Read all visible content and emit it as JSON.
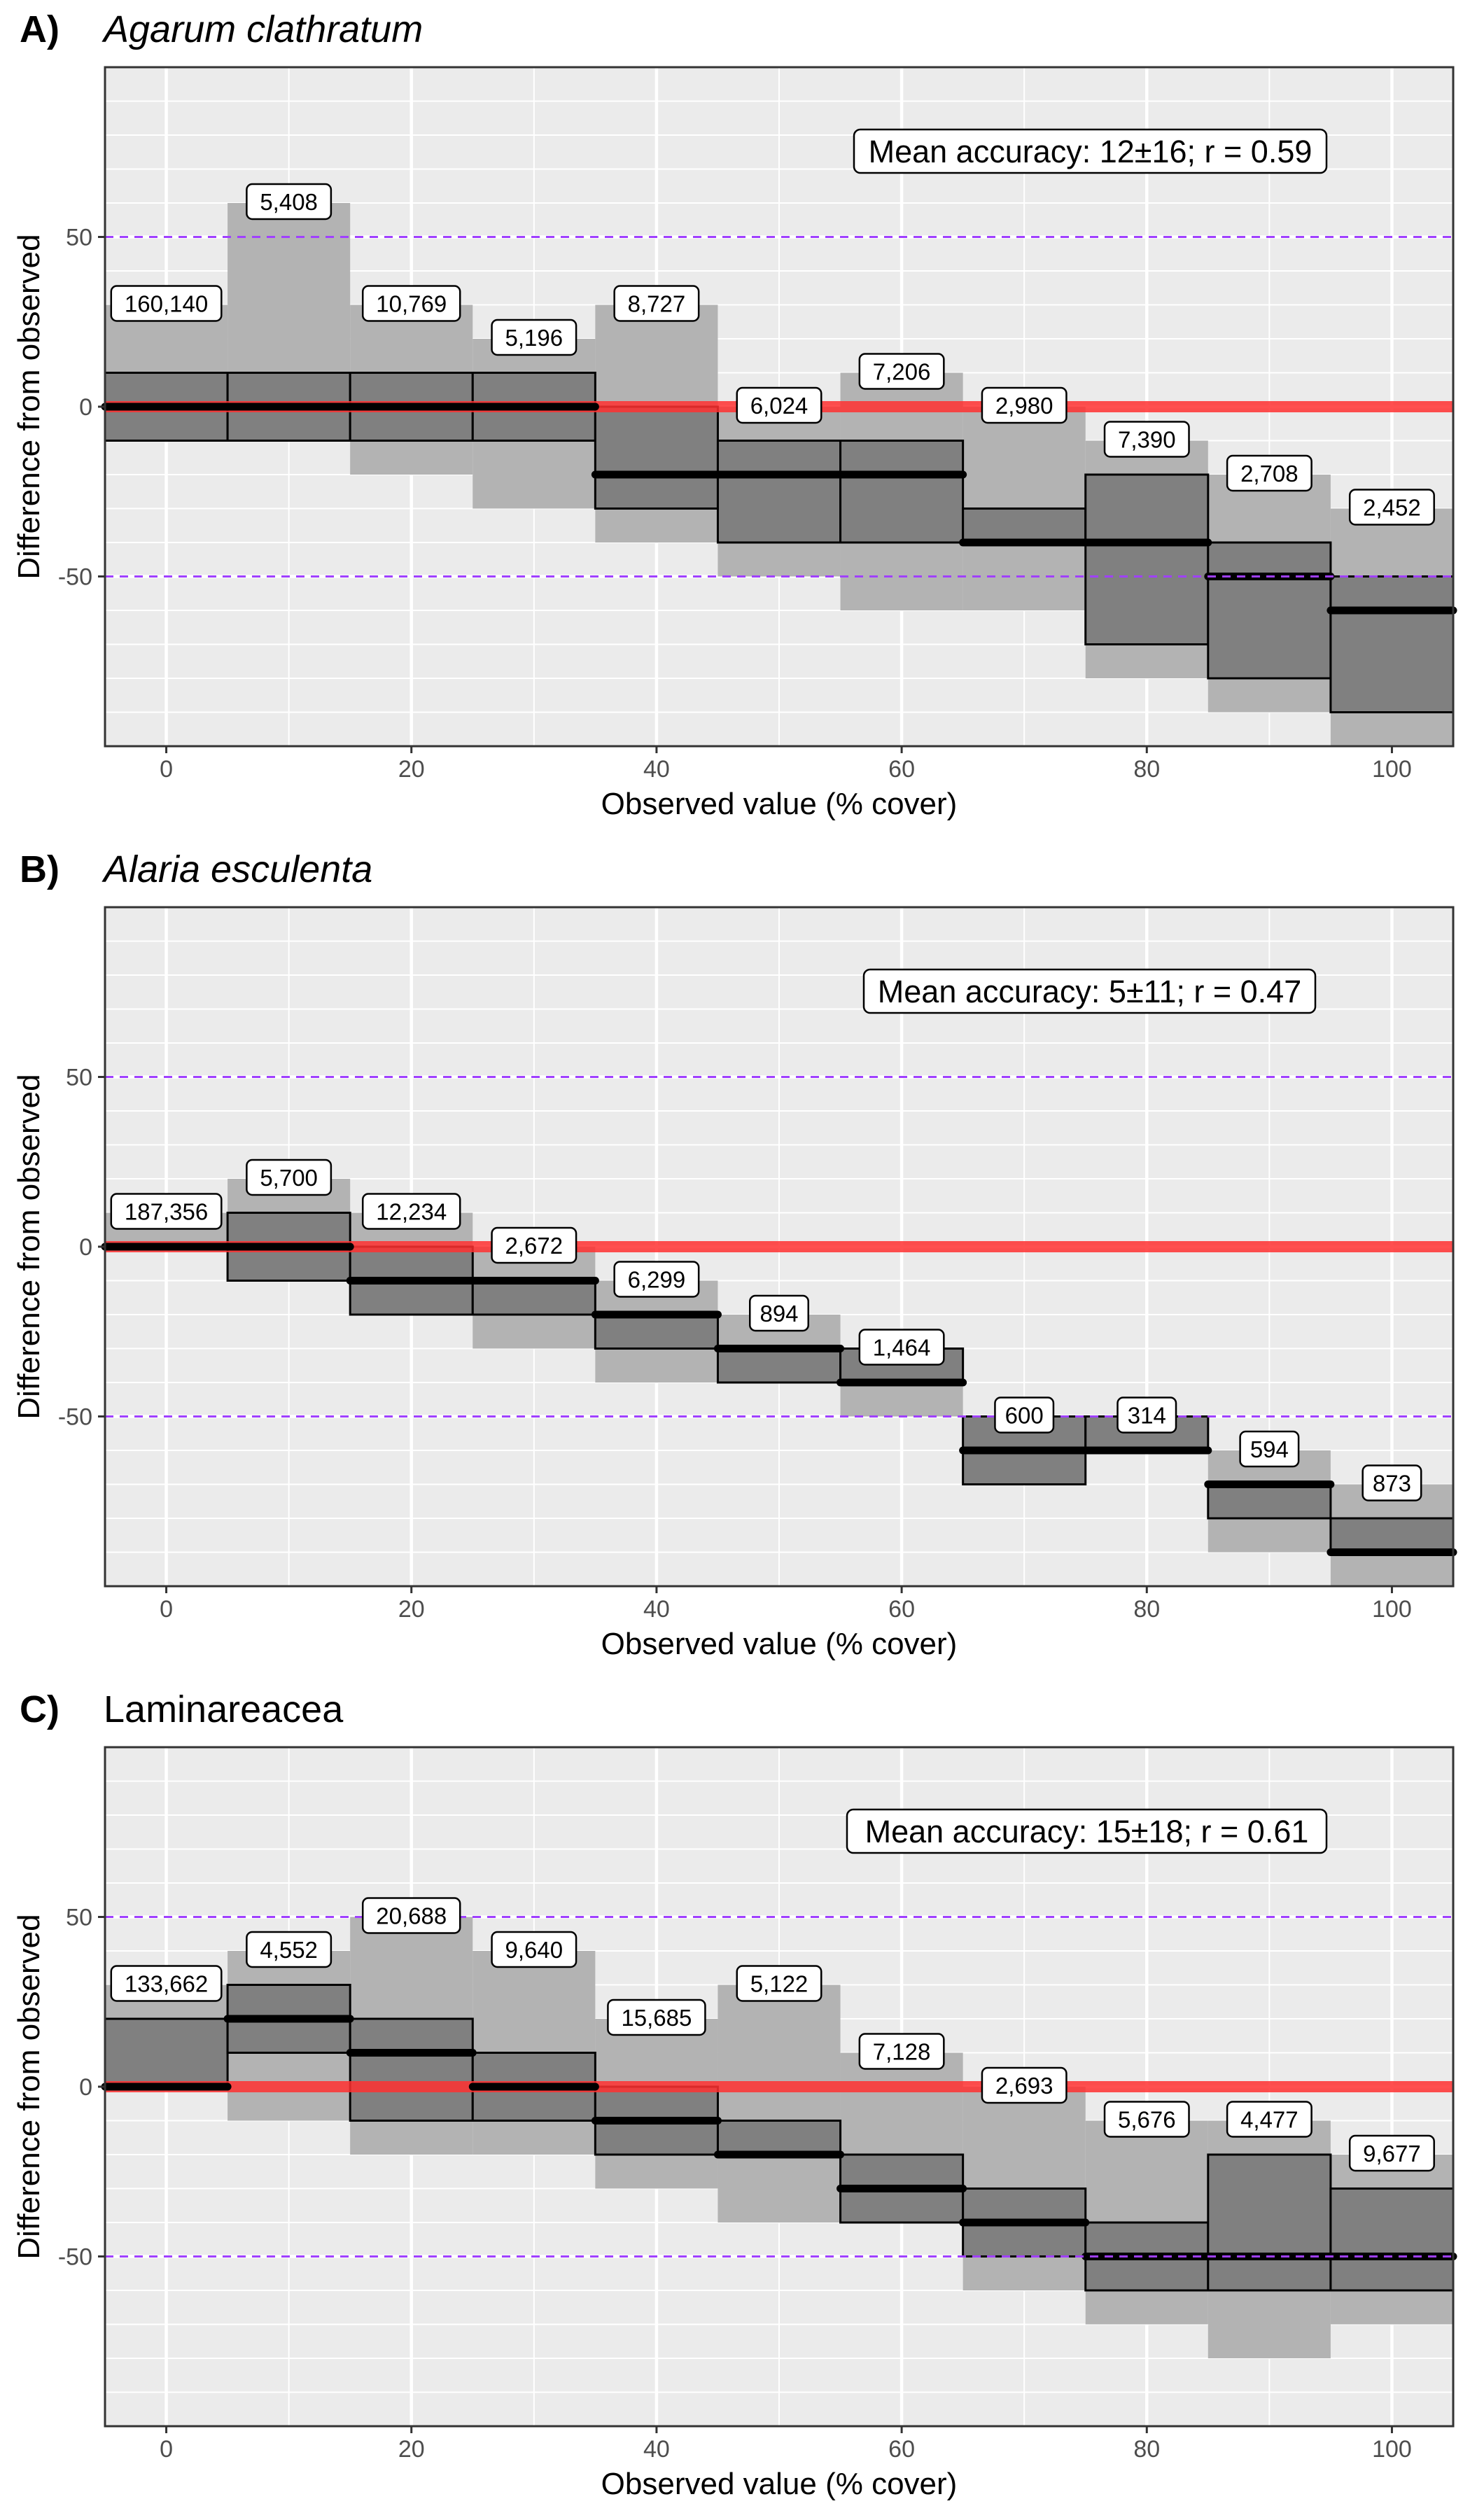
{
  "colors": {
    "panel_bg": "#ebebeb",
    "grid": "#ffffff",
    "outer_band": "#b3b3b3",
    "inner_box": "#808080",
    "median": "#000000",
    "zero_line": "#ff3030",
    "ref_lines": "#a040ff"
  },
  "chart_data": [
    {
      "type": "boxplot",
      "panel_label": "A)",
      "title": "Agarum clathratum",
      "title_italic": true,
      "annotation": "Mean accuracy: 12±16; r = 0.59",
      "xlabel": "Observed value (% cover)",
      "ylabel": "Difference from observed",
      "xlim": [
        -5,
        105
      ],
      "ylim": [
        -100,
        100
      ],
      "x_ticks": [
        0,
        20,
        40,
        60,
        80,
        100
      ],
      "x_tick_labels": [
        "0",
        "20",
        "40",
        "60",
        "80",
        "100"
      ],
      "y_ticks": [
        -50,
        0,
        50
      ],
      "y_tick_labels": [
        "-50",
        "0",
        "50"
      ],
      "reference_lines": [
        50,
        -50
      ],
      "zero_line": 0,
      "grid": true,
      "bins": [
        {
          "x": 0,
          "outer": [
            -10,
            30
          ],
          "box": [
            -10,
            10
          ],
          "median": 0,
          "n_label": "160,140"
        },
        {
          "x": 10,
          "outer": [
            -10,
            60
          ],
          "box": [
            -10,
            10
          ],
          "median": 0,
          "n_label": "5,408"
        },
        {
          "x": 20,
          "outer": [
            -20,
            30
          ],
          "box": [
            -10,
            10
          ],
          "median": 0,
          "n_label": "10,769"
        },
        {
          "x": 30,
          "outer": [
            -30,
            20
          ],
          "box": [
            -10,
            10
          ],
          "median": 0,
          "n_label": "5,196"
        },
        {
          "x": 40,
          "outer": [
            -40,
            30
          ],
          "box": [
            -30,
            0
          ],
          "median": -20,
          "n_label": "8,727"
        },
        {
          "x": 50,
          "outer": [
            -50,
            0
          ],
          "box": [
            -40,
            -10
          ],
          "median": -20,
          "n_label": "6,024"
        },
        {
          "x": 60,
          "outer": [
            -60,
            10
          ],
          "box": [
            -40,
            -10
          ],
          "median": -20,
          "n_label": "7,206"
        },
        {
          "x": 70,
          "outer": [
            -60,
            0
          ],
          "box": [
            -40,
            -30
          ],
          "median": -40,
          "n_label": "2,980"
        },
        {
          "x": 80,
          "outer": [
            -80,
            -10
          ],
          "box": [
            -70,
            -20
          ],
          "median": -40,
          "n_label": "7,390"
        },
        {
          "x": 90,
          "outer": [
            -90,
            -20
          ],
          "box": [
            -80,
            -40
          ],
          "median": -50,
          "n_label": "2,708"
        },
        {
          "x": 100,
          "outer": [
            -100,
            -30
          ],
          "box": [
            -90,
            -50
          ],
          "median": -60,
          "n_label": "2,452"
        }
      ]
    },
    {
      "type": "boxplot",
      "panel_label": "B)",
      "title": "Alaria esculenta",
      "title_italic": true,
      "annotation": "Mean accuracy: 5±11; r = 0.47",
      "xlabel": "Observed value (% cover)",
      "ylabel": "Difference from observed",
      "xlim": [
        -5,
        105
      ],
      "ylim": [
        -100,
        100
      ],
      "x_ticks": [
        0,
        20,
        40,
        60,
        80,
        100
      ],
      "x_tick_labels": [
        "0",
        "20",
        "40",
        "60",
        "80",
        "100"
      ],
      "y_ticks": [
        -50,
        0,
        50
      ],
      "y_tick_labels": [
        "-50",
        "0",
        "50"
      ],
      "reference_lines": [
        50,
        -50
      ],
      "zero_line": 0,
      "grid": true,
      "bins": [
        {
          "x": 0,
          "outer": [
            0,
            10
          ],
          "box": [
            0,
            0
          ],
          "median": 0,
          "n_label": "187,356"
        },
        {
          "x": 10,
          "outer": [
            -10,
            20
          ],
          "box": [
            -10,
            10
          ],
          "median": 0,
          "n_label": "5,700"
        },
        {
          "x": 20,
          "outer": [
            -20,
            10
          ],
          "box": [
            -20,
            0
          ],
          "median": -10,
          "n_label": "12,234"
        },
        {
          "x": 30,
          "outer": [
            -30,
            0
          ],
          "box": [
            -20,
            -10
          ],
          "median": -10,
          "n_label": "2,672"
        },
        {
          "x": 40,
          "outer": [
            -40,
            -10
          ],
          "box": [
            -30,
            -20
          ],
          "median": -20,
          "n_label": "6,299"
        },
        {
          "x": 50,
          "outer": [
            -40,
            -20
          ],
          "box": [
            -40,
            -30
          ],
          "median": -30,
          "n_label": "894"
        },
        {
          "x": 60,
          "outer": [
            -50,
            -30
          ],
          "box": [
            -40,
            -30
          ],
          "median": -40,
          "n_label": "1,464"
        },
        {
          "x": 70,
          "outer": [
            -70,
            -50
          ],
          "box": [
            -70,
            -50
          ],
          "median": -60,
          "n_label": "600"
        },
        {
          "x": 80,
          "outer": [
            -60,
            -50
          ],
          "box": [
            -60,
            -50
          ],
          "median": -60,
          "n_label": "314"
        },
        {
          "x": 90,
          "outer": [
            -90,
            -60
          ],
          "box": [
            -80,
            -70
          ],
          "median": -70,
          "n_label": "594"
        },
        {
          "x": 100,
          "outer": [
            -100,
            -70
          ],
          "box": [
            -90,
            -80
          ],
          "median": -90,
          "n_label": "873"
        }
      ]
    },
    {
      "type": "boxplot",
      "panel_label": "C)",
      "title": "Laminareacea",
      "title_italic": false,
      "annotation": "Mean accuracy: 15±18; r = 0.61",
      "xlabel": "Observed value (% cover)",
      "ylabel": "Difference from observed",
      "xlim": [
        -5,
        105
      ],
      "ylim": [
        -100,
        100
      ],
      "x_ticks": [
        0,
        20,
        40,
        60,
        80,
        100
      ],
      "x_tick_labels": [
        "0",
        "20",
        "40",
        "60",
        "80",
        "100"
      ],
      "y_ticks": [
        -50,
        0,
        50
      ],
      "y_tick_labels": [
        "-50",
        "0",
        "50"
      ],
      "reference_lines": [
        50,
        -50
      ],
      "zero_line": 0,
      "grid": true,
      "bins": [
        {
          "x": 0,
          "outer": [
            0,
            30
          ],
          "box": [
            0,
            20
          ],
          "median": 0,
          "n_label": "133,662"
        },
        {
          "x": 10,
          "outer": [
            -10,
            40
          ],
          "box": [
            10,
            30
          ],
          "median": 20,
          "n_label": "4,552"
        },
        {
          "x": 20,
          "outer": [
            -20,
            50
          ],
          "box": [
            -10,
            20
          ],
          "median": 10,
          "n_label": "20,688"
        },
        {
          "x": 30,
          "outer": [
            -20,
            40
          ],
          "box": [
            -10,
            10
          ],
          "median": 0,
          "n_label": "9,640"
        },
        {
          "x": 40,
          "outer": [
            -30,
            20
          ],
          "box": [
            -20,
            0
          ],
          "median": -10,
          "n_label": "15,685"
        },
        {
          "x": 50,
          "outer": [
            -40,
            30
          ],
          "box": [
            -20,
            -10
          ],
          "median": -20,
          "n_label": "5,122"
        },
        {
          "x": 60,
          "outer": [
            -40,
            10
          ],
          "box": [
            -40,
            -20
          ],
          "median": -30,
          "n_label": "7,128"
        },
        {
          "x": 70,
          "outer": [
            -60,
            0
          ],
          "box": [
            -50,
            -30
          ],
          "median": -40,
          "n_label": "2,693"
        },
        {
          "x": 80,
          "outer": [
            -70,
            -10
          ],
          "box": [
            -60,
            -40
          ],
          "median": -50,
          "n_label": "5,676"
        },
        {
          "x": 90,
          "outer": [
            -80,
            -10
          ],
          "box": [
            -60,
            -20
          ],
          "median": -50,
          "n_label": "4,477"
        },
        {
          "x": 100,
          "outer": [
            -70,
            -20
          ],
          "box": [
            -60,
            -30
          ],
          "median": -50,
          "n_label": "9,677"
        }
      ]
    }
  ]
}
